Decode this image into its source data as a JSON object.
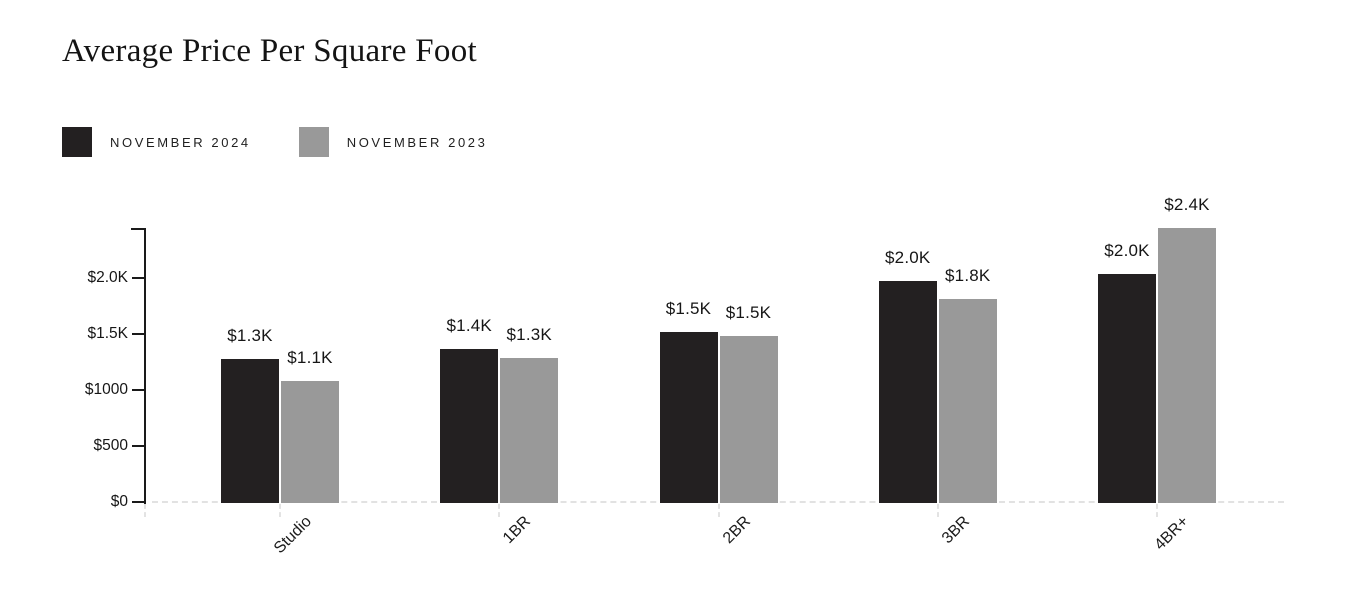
{
  "title": "Average Price Per Square Foot",
  "colors": {
    "series_2024": "#232021",
    "series_2023": "#999999",
    "axis": "#1a1a1a",
    "baseline_dash": "#e2e2e2",
    "text": "#161616"
  },
  "chart_data": {
    "type": "bar",
    "title": "Average Price Per Square Foot",
    "xlabel": "",
    "ylabel": "",
    "categories": [
      "Studio",
      "1BR",
      "2BR",
      "3BR",
      "4BR+"
    ],
    "series": [
      {
        "name": "NOVEMBER 2024",
        "color": "#232021",
        "values": [
          1275,
          1365,
          1515,
          1970,
          2040
        ],
        "labels": [
          "$1.3K",
          "$1.4K",
          "$1.5K",
          "$2.0K",
          "$2.0K"
        ]
      },
      {
        "name": "NOVEMBER 2023",
        "color": "#999999",
        "values": [
          1080,
          1285,
          1480,
          1810,
          2450
        ],
        "labels": [
          "$1.1K",
          "$1.3K",
          "$1.5K",
          "$1.8K",
          "$2.4K"
        ]
      }
    ],
    "y_ticks": [
      {
        "value": 0,
        "label": "$0"
      },
      {
        "value": 500,
        "label": "$500"
      },
      {
        "value": 1000,
        "label": "$1000"
      },
      {
        "value": 1500,
        "label": "$1.5K"
      },
      {
        "value": 2000,
        "label": "$2.0K"
      }
    ],
    "ylim": [
      0,
      2450
    ],
    "grid": false,
    "legend_position": "top-left",
    "bar_value_prefix": "$"
  }
}
